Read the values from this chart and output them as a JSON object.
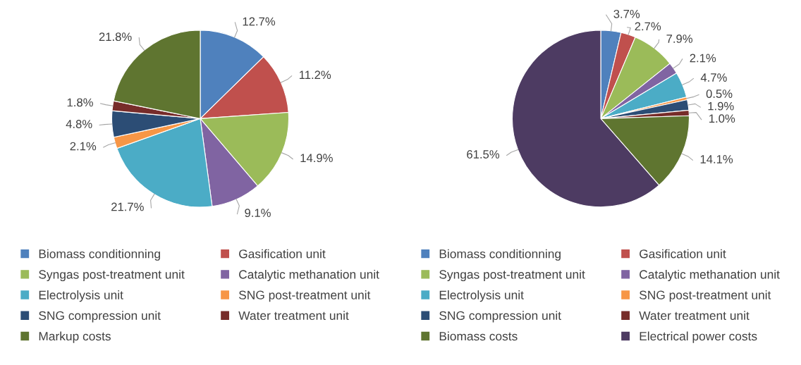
{
  "chart_data": [
    {
      "type": "pie",
      "categories": [
        "Biomass conditionning",
        "Gasification unit",
        "Syngas post-treatment unit",
        "Catalytic methanation unit",
        "Electrolysis unit",
        "SNG post-treatment unit",
        "SNG compression unit",
        "Water treatment unit",
        "Markup costs"
      ],
      "values": [
        12.7,
        11.2,
        14.9,
        9.1,
        21.7,
        2.1,
        4.8,
        1.8,
        21.8
      ],
      "value_labels": [
        "12.7%",
        "11.2%",
        "14.9%",
        "9.1%",
        "21.7%",
        "2.1%",
        "4.8%",
        "1.8%",
        "21.8%"
      ],
      "colors": [
        "#4f81bd",
        "#c0504d",
        "#9bbb59",
        "#8064a2",
        "#4bacc6",
        "#f79646",
        "#2c4d75",
        "#772c2a",
        "#5f7530"
      ],
      "legend": "bottom"
    },
    {
      "type": "pie",
      "categories": [
        "Biomass conditionning",
        "Gasification unit",
        "Syngas post-treatment unit",
        "Catalytic methanation unit",
        "Electrolysis unit",
        "SNG post-treatment unit",
        "SNG compression unit",
        "Water treatment unit",
        "Biomass costs",
        "Electrical power costs"
      ],
      "values": [
        3.7,
        2.7,
        7.9,
        2.1,
        4.7,
        0.5,
        1.9,
        1.0,
        14.1,
        61.5
      ],
      "value_labels": [
        "3.7%",
        "2.7%",
        "7.9%",
        "2.1%",
        "4.7%",
        "0.5%",
        "1.9%",
        "1.0%",
        "14.1%",
        "61.5%"
      ],
      "colors": [
        "#4f81bd",
        "#c0504d",
        "#9bbb59",
        "#8064a2",
        "#4bacc6",
        "#f79646",
        "#2c4d75",
        "#772c2a",
        "#5f7530",
        "#4d3b62"
      ],
      "legend": "bottom"
    }
  ]
}
